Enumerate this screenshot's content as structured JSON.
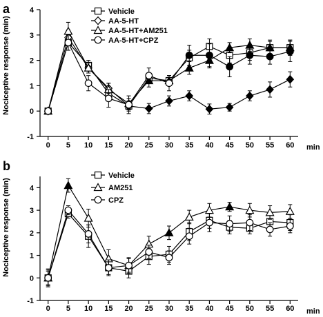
{
  "chart_data": [
    {
      "panel": "a",
      "type": "line",
      "xlabel": "min",
      "ylabel": "Nociceptive response (min)",
      "ylim": [
        -1,
        4
      ],
      "x": [
        0,
        5,
        10,
        15,
        20,
        25,
        30,
        35,
        40,
        45,
        50,
        55,
        60
      ],
      "xticks": [
        "0",
        "5",
        "10",
        "15",
        "20",
        "25",
        "30",
        "35",
        "40",
        "45",
        "50",
        "55",
        "60"
      ],
      "yticks": [
        "-1",
        "0",
        "1",
        "2",
        "3",
        "4"
      ],
      "legend_position": "top-center",
      "series": [
        {
          "name": "Vehicle",
          "marker": "square",
          "values": [
            0.0,
            2.7,
            1.8,
            0.7,
            0.2,
            1.3,
            1.2,
            2.1,
            2.55,
            2.2,
            2.3,
            2.5,
            2.5
          ],
          "errors": [
            0.1,
            0.3,
            0.2,
            0.2,
            0.2,
            0.2,
            0.2,
            0.3,
            0.3,
            0.3,
            0.3,
            0.3,
            0.3
          ],
          "filled": []
        },
        {
          "name": "AA-5-HT",
          "marker": "diamond",
          "values": [
            0.0,
            2.9,
            1.7,
            0.9,
            0.2,
            0.1,
            0.4,
            0.6,
            0.08,
            0.15,
            0.6,
            0.85,
            1.25
          ],
          "errors": [
            0.1,
            0.3,
            0.2,
            0.2,
            0.15,
            0.2,
            0.2,
            0.2,
            0.2,
            0.15,
            0.2,
            0.3,
            0.3
          ],
          "filled": [
            5,
            6,
            7,
            8,
            9,
            10,
            11,
            12
          ]
        },
        {
          "name": "AA-5-HT+AM251",
          "marker": "triangle",
          "values": [
            0.0,
            3.15,
            1.7,
            0.85,
            0.3,
            1.2,
            1.2,
            1.7,
            2.0,
            2.5,
            2.6,
            2.5,
            2.5
          ],
          "errors": [
            0.1,
            0.35,
            0.2,
            0.25,
            0.2,
            0.25,
            0.2,
            0.25,
            0.3,
            0.2,
            0.25,
            0.25,
            0.3
          ],
          "filled": [
            5,
            6,
            7,
            8,
            9,
            10,
            11,
            12
          ]
        },
        {
          "name": "AA-5-HT+CPZ",
          "marker": "circle",
          "values": [
            0.0,
            2.7,
            1.1,
            0.5,
            0.25,
            1.4,
            1.1,
            2.2,
            2.2,
            1.75,
            2.2,
            2.15,
            2.35
          ],
          "errors": [
            0.1,
            0.3,
            0.3,
            0.35,
            0.35,
            0.3,
            0.3,
            0.4,
            0.45,
            0.4,
            0.35,
            0.3,
            0.4
          ],
          "filled": [
            7,
            8,
            9,
            10,
            11,
            12
          ]
        }
      ]
    },
    {
      "panel": "b",
      "type": "line",
      "xlabel": "min",
      "ylabel": "Nociceptive response (min)",
      "ylim": [
        -1,
        4.5
      ],
      "x": [
        0,
        5,
        10,
        15,
        20,
        25,
        30,
        35,
        40,
        45,
        50,
        55,
        60
      ],
      "xticks": [
        "0",
        "5",
        "10",
        "15",
        "20",
        "25",
        "30",
        "35",
        "40",
        "45",
        "50",
        "55",
        "60"
      ],
      "yticks": [
        "-1",
        "0",
        "1",
        "2",
        "3",
        "4"
      ],
      "legend_position": "top-center",
      "series": [
        {
          "name": "Vehicle",
          "marker": "square",
          "values": [
            0.0,
            2.85,
            1.85,
            0.45,
            0.3,
            0.95,
            1.05,
            2.05,
            2.55,
            2.25,
            2.2,
            2.5,
            2.45
          ],
          "errors": [
            0.4,
            0.2,
            0.5,
            0.3,
            0.3,
            0.35,
            0.35,
            0.4,
            0.35,
            0.3,
            0.25,
            0.3,
            0.35
          ],
          "filled": []
        },
        {
          "name": "AM251",
          "marker": "triangle",
          "values": [
            0.0,
            4.1,
            2.65,
            0.85,
            0.55,
            1.5,
            2.0,
            2.7,
            3.0,
            3.15,
            3.0,
            2.9,
            2.95
          ],
          "errors": [
            0.3,
            0.3,
            0.4,
            0.4,
            0.3,
            0.35,
            0.3,
            0.3,
            0.3,
            0.2,
            0.3,
            0.3,
            0.3
          ],
          "filled": [
            1,
            6,
            9
          ]
        },
        {
          "name": "CPZ",
          "marker": "circle",
          "values": [
            0.0,
            3.0,
            1.95,
            0.45,
            0.55,
            1.15,
            0.9,
            1.85,
            2.45,
            2.4,
            2.45,
            2.15,
            2.3
          ],
          "errors": [
            0.35,
            0.2,
            0.4,
            0.35,
            0.35,
            0.3,
            0.3,
            0.35,
            0.4,
            0.35,
            0.35,
            0.3,
            0.3
          ],
          "filled": []
        }
      ]
    }
  ]
}
